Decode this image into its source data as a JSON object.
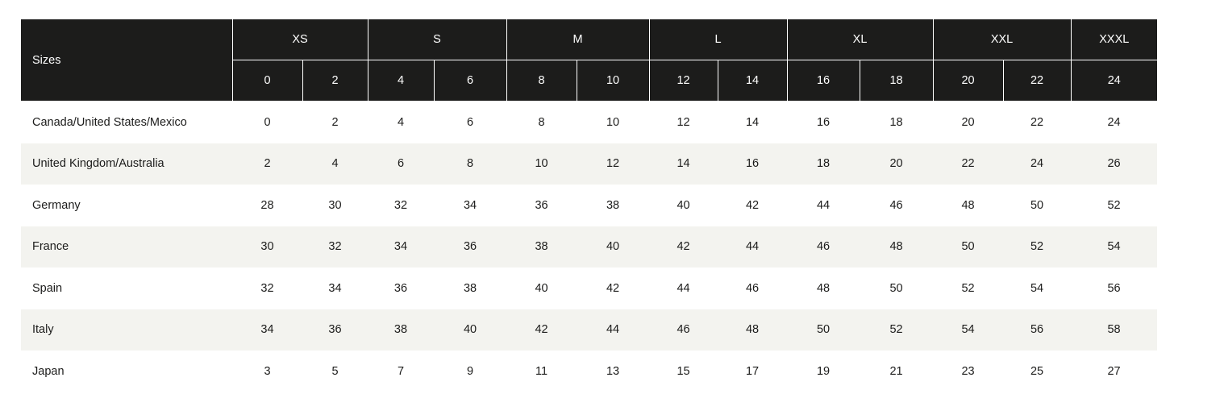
{
  "table": {
    "corner_label": "Sizes",
    "groups": [
      {
        "label": "XS",
        "sizes": [
          "0",
          "2"
        ]
      },
      {
        "label": "S",
        "sizes": [
          "4",
          "6"
        ]
      },
      {
        "label": "M",
        "sizes": [
          "8",
          "10"
        ]
      },
      {
        "label": "L",
        "sizes": [
          "12",
          "14"
        ]
      },
      {
        "label": "XL",
        "sizes": [
          "16",
          "18"
        ]
      },
      {
        "label": "XXL",
        "sizes": [
          "20",
          "22"
        ]
      },
      {
        "label": "XXXL",
        "sizes": [
          "24"
        ]
      }
    ],
    "rows": [
      {
        "region": "Canada/United States/Mexico",
        "values": [
          "0",
          "2",
          "4",
          "6",
          "8",
          "10",
          "12",
          "14",
          "16",
          "18",
          "20",
          "22",
          "24"
        ]
      },
      {
        "region": "United Kingdom/Australia",
        "values": [
          "2",
          "4",
          "6",
          "8",
          "10",
          "12",
          "14",
          "16",
          "18",
          "20",
          "22",
          "24",
          "26"
        ]
      },
      {
        "region": "Germany",
        "values": [
          "28",
          "30",
          "32",
          "34",
          "36",
          "38",
          "40",
          "42",
          "44",
          "46",
          "48",
          "50",
          "52"
        ]
      },
      {
        "region": "France",
        "values": [
          "30",
          "32",
          "34",
          "36",
          "38",
          "40",
          "42",
          "44",
          "46",
          "48",
          "50",
          "52",
          "54"
        ]
      },
      {
        "region": "Spain",
        "values": [
          "32",
          "34",
          "36",
          "38",
          "40",
          "42",
          "44",
          "46",
          "48",
          "50",
          "52",
          "54",
          "56"
        ]
      },
      {
        "region": "Italy",
        "values": [
          "34",
          "36",
          "38",
          "40",
          "42",
          "44",
          "46",
          "48",
          "50",
          "52",
          "54",
          "56",
          "58"
        ]
      },
      {
        "region": "Japan",
        "values": [
          "3",
          "5",
          "7",
          "9",
          "11",
          "13",
          "15",
          "17",
          "19",
          "21",
          "23",
          "25",
          "27"
        ]
      }
    ]
  },
  "colors": {
    "header_bg": "#1c1c1b",
    "stripe_bg": "#f3f3ef",
    "text": "#1c1c1b"
  }
}
